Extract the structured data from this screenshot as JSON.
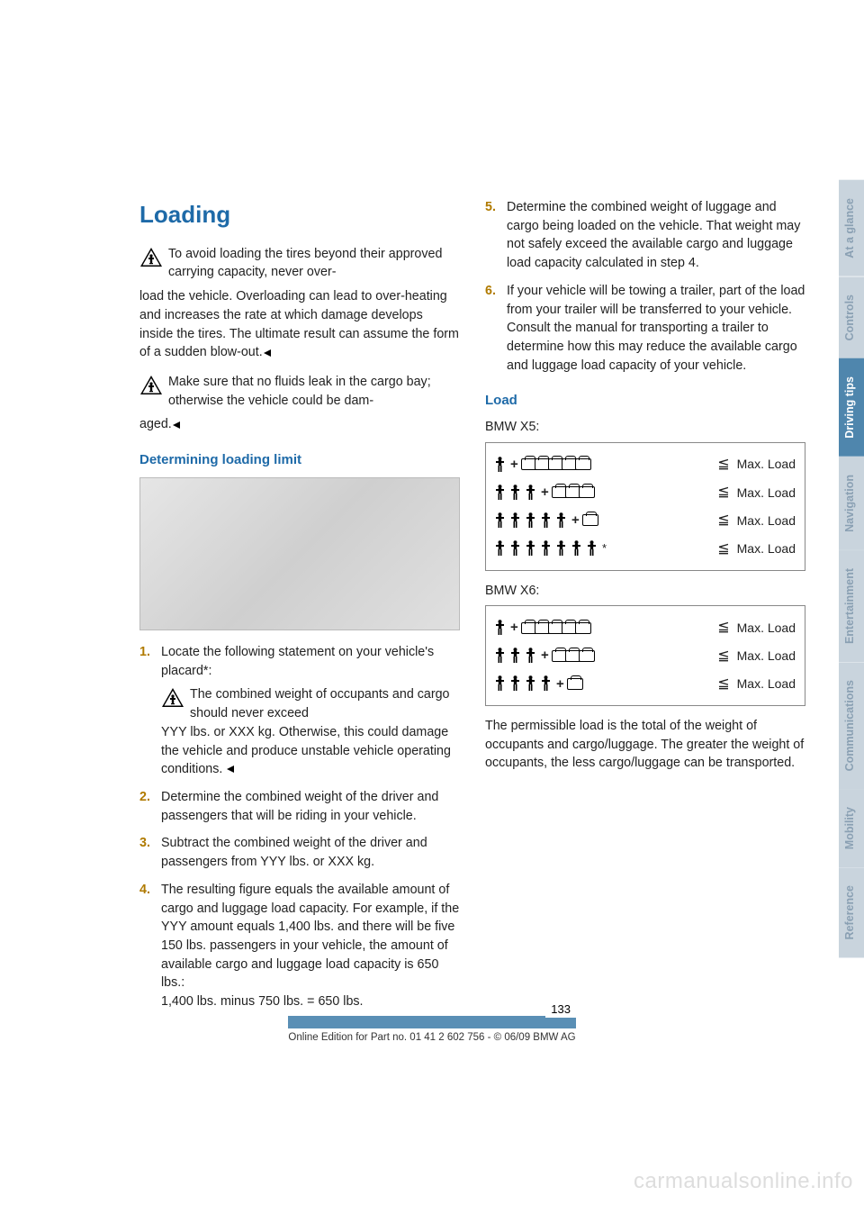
{
  "colors": {
    "heading_blue": "#1e6aa8",
    "subheading_blue": "#1e6aa8",
    "step_number": "#b07a00",
    "tab_inactive_bg": "#c9d4dd",
    "tab_inactive_fg": "#8aa0b3",
    "tab_active_bg": "#4f86ad",
    "tab_active_fg": "#ffffff",
    "footer_bar": "#5a8fb5",
    "watermark": "#dddddd"
  },
  "title": "Loading",
  "warnings": [
    {
      "lead": "To avoid loading the tires beyond their approved carrying capacity, never over-",
      "rest": "load the vehicle. Overloading can lead to over-heating and increases the rate at which damage develops inside the tires. The ultimate result can assume the form of a sudden blow-out."
    },
    {
      "lead": "Make sure that no fluids leak in the cargo bay; otherwise the vehicle could be dam-",
      "rest": "aged."
    }
  ],
  "subheading_left": "Determining loading limit",
  "steps_left": [
    {
      "n": "1.",
      "text": "Locate the following statement on your vehicle's placard*:",
      "warn_lead": "The combined weight of occupants and cargo should never exceed",
      "warn_rest": "YYY lbs. or XXX kg. Otherwise, this could damage the vehicle and produce unstable vehicle operating conditions."
    },
    {
      "n": "2.",
      "text": "Determine the combined weight of the driver and passengers that will be riding in your vehicle."
    },
    {
      "n": "3.",
      "text": "Subtract the combined weight of the driver and passengers from YYY lbs. or XXX kg."
    },
    {
      "n": "4.",
      "text": "The resulting figure equals the available amount of cargo and luggage load capacity. For example, if the YYY amount equals 1,400 lbs. and there will be five 150 lbs. passengers in your vehicle, the amount of available cargo and luggage load capacity is 650 lbs.:\n1,400 lbs. minus 750 lbs. = 650 lbs."
    }
  ],
  "steps_right": [
    {
      "n": "5.",
      "text": "Determine the combined weight of luggage and cargo being loaded on the vehicle. That weight may not safely exceed the available cargo and luggage load capacity calculated in step 4."
    },
    {
      "n": "6.",
      "text": "If your vehicle will be towing a trailer, part of the load from your trailer will be transferred to your vehicle. Consult the manual for transporting a trailer to determine how this may reduce the available cargo and luggage load capacity of your vehicle."
    }
  ],
  "load_heading": "Load",
  "x5_label": "BMW X5:",
  "x6_label": "BMW X6:",
  "diagram_x5": [
    {
      "people": 1,
      "boxes": 5,
      "star": false
    },
    {
      "people": 3,
      "boxes": 3,
      "star": false
    },
    {
      "people": 5,
      "boxes": 1,
      "star": false
    },
    {
      "people": 7,
      "boxes": 0,
      "star": true
    }
  ],
  "diagram_x6": [
    {
      "people": 1,
      "boxes": 5
    },
    {
      "people": 3,
      "boxes": 3
    },
    {
      "people": 4,
      "boxes": 1
    }
  ],
  "max_load_label": "Max. Load",
  "right_para": "The permissible load is the total of the weight of occupants and cargo/luggage. The greater the weight of occupants, the less cargo/luggage can be transported.",
  "tabs": [
    {
      "label": "At a glance",
      "active": false
    },
    {
      "label": "Controls",
      "active": false
    },
    {
      "label": "Driving tips",
      "active": true
    },
    {
      "label": "Navigation",
      "active": false
    },
    {
      "label": "Entertainment",
      "active": false
    },
    {
      "label": "Communications",
      "active": false
    },
    {
      "label": "Mobility",
      "active": false
    },
    {
      "label": "Reference",
      "active": false
    }
  ],
  "page_number": "133",
  "footer_text": "Online Edition for Part no. 01 41 2 602 756 - © 06/09 BMW AG",
  "watermark": "carmanualsonline.info"
}
